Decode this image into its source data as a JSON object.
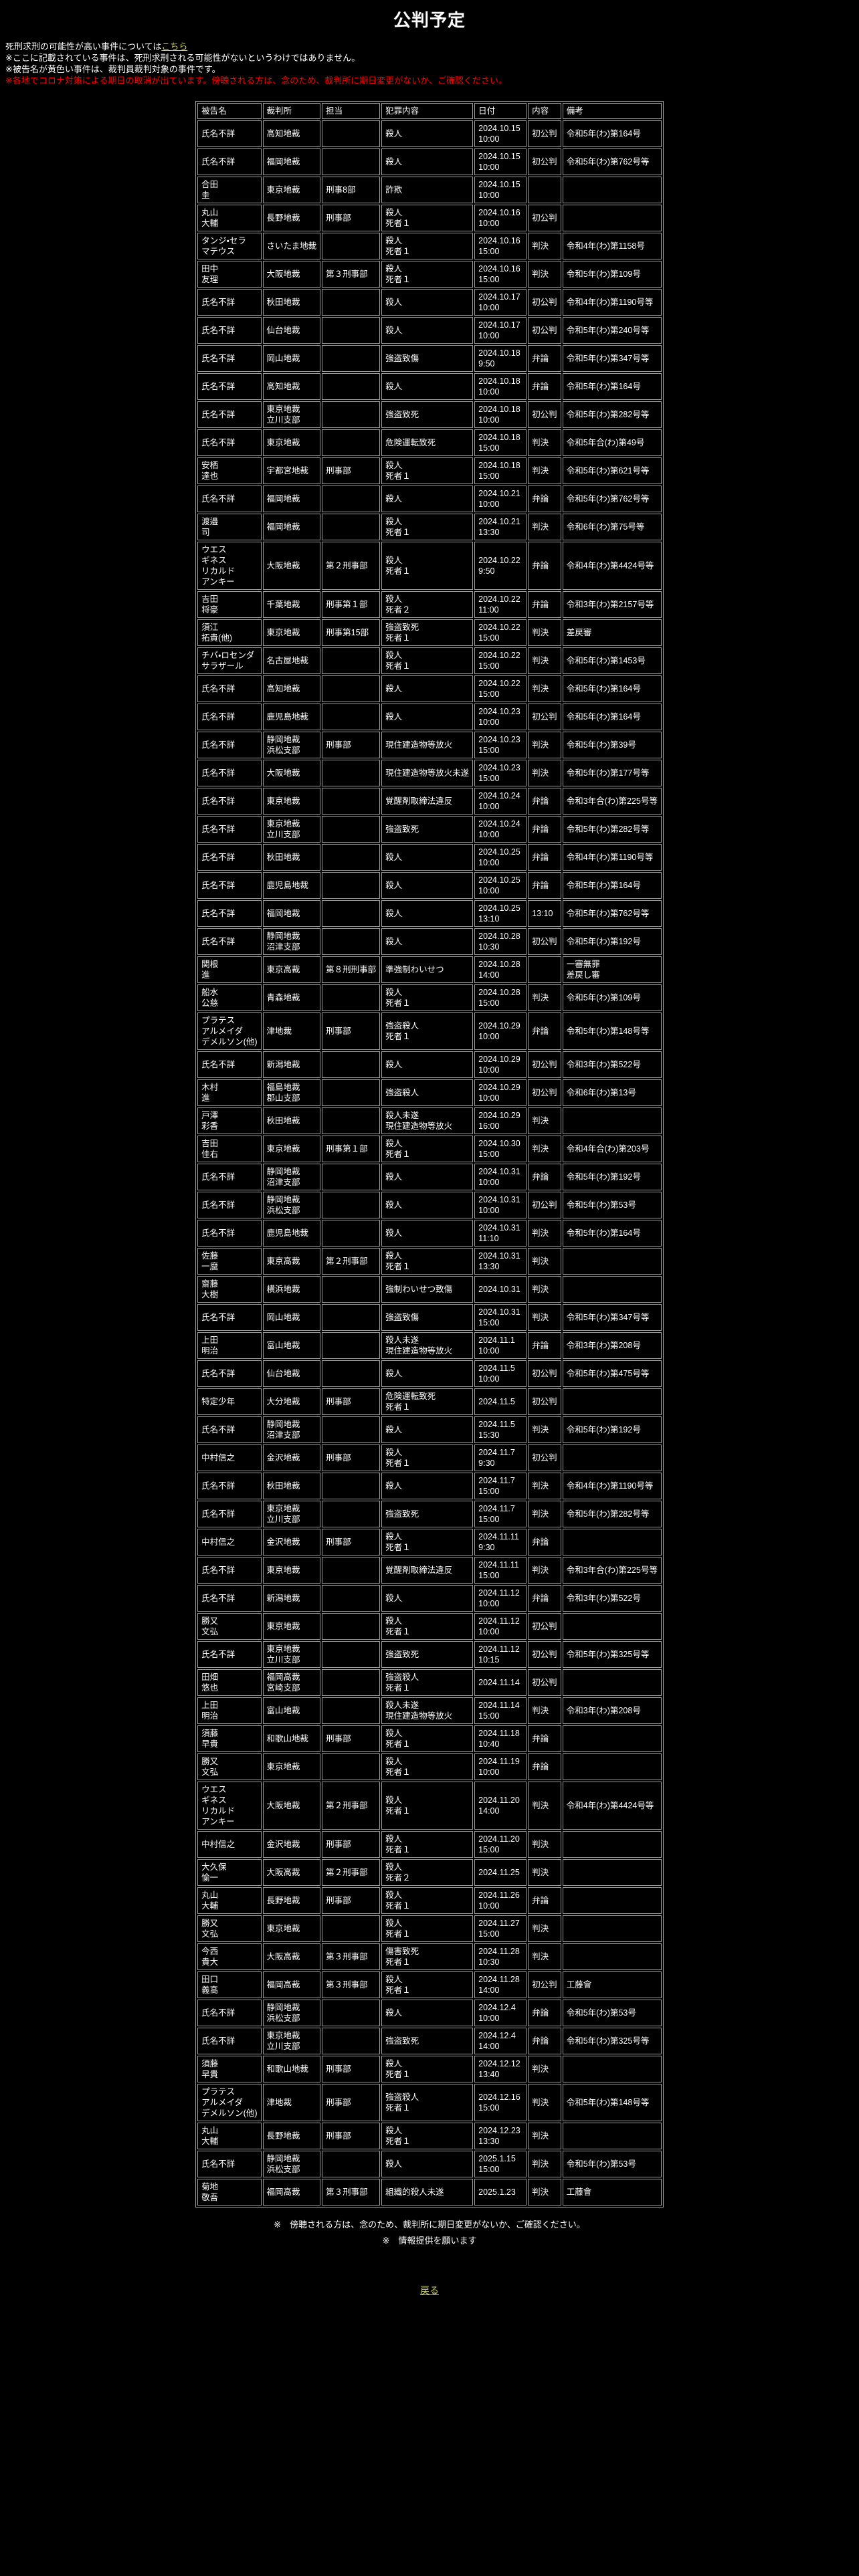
{
  "page": {
    "title": "公判予定",
    "intro": {
      "line1_prefix": "死刑求刑の可能性が高い事件については",
      "line1_link": "こちら",
      "line2": "※ここに記載されている事件は、死刑求刑される可能性がないというわけではありません。",
      "line3": "※被告名が黄色い事件は、裁判員裁判対象の事件です。",
      "warning": "※各地でコロナ対策による期日の取消が出ています。傍聴される方は、念のため、裁判所に期日変更がないか、ご確認ください。"
    },
    "footer": {
      "note1": "※　傍聴される方は、念のため、裁判所に期日変更がないか、ご確認ください。",
      "note2": "※　情報提供を願います",
      "back_link": "戻る"
    },
    "colors": {
      "background": "#000000",
      "text": "#ffffff",
      "lay_judge_name": "#ffff00",
      "warning": "#ff0000",
      "link": "#cccc66",
      "table_border": "#9c9c9c"
    }
  },
  "table": {
    "headers": [
      "被告名",
      "裁判所",
      "担当",
      "犯罪内容",
      "日付",
      "内容",
      "備考"
    ],
    "rows": [
      {
        "name": "氏名不詳",
        "lay_judge": true,
        "court": "高知地裁",
        "division": "",
        "crime": "殺人",
        "date": "2024.10.15\n10:00",
        "session": "初公判",
        "note": "令和5年(わ)第164号"
      },
      {
        "name": "氏名不詳",
        "lay_judge": true,
        "court": "福岡地裁",
        "division": "",
        "crime": "殺人",
        "date": "2024.10.15\n10:00",
        "session": "初公判",
        "note": "令和5年(わ)第762号等"
      },
      {
        "name": "合田\n圭",
        "lay_judge": false,
        "court": "東京地裁",
        "division": "刑事8部",
        "crime": "詐欺",
        "date": "2024.10.15\n10:00",
        "session": "",
        "note": ""
      },
      {
        "name": "丸山\n大輔",
        "lay_judge": true,
        "court": "長野地裁",
        "division": "刑事部",
        "crime": "殺人\n死者１",
        "date": "2024.10.16\n10:00",
        "session": "初公判",
        "note": ""
      },
      {
        "name": "タンジ・セラ\nマテウス",
        "lay_judge": true,
        "court": "さいたま地裁",
        "division": "",
        "crime": "殺人\n死者１",
        "date": "2024.10.16\n15:00",
        "session": "判決",
        "note": "令和4年(わ)第1158号"
      },
      {
        "name": "田中\n友理",
        "lay_judge": true,
        "court": "大阪地裁",
        "division": "第３刑事部",
        "crime": "殺人\n死者１",
        "date": "2024.10.16\n15:00",
        "session": "判決",
        "note": "令和5年(わ)第109号"
      },
      {
        "name": "氏名不詳",
        "lay_judge": true,
        "court": "秋田地裁",
        "division": "",
        "crime": "殺人",
        "date": "2024.10.17\n10:00",
        "session": "初公判",
        "note": "令和4年(わ)第1190号等"
      },
      {
        "name": "氏名不詳",
        "lay_judge": true,
        "court": "仙台地裁",
        "division": "",
        "crime": "殺人",
        "date": "2024.10.17\n10:00",
        "session": "初公判",
        "note": "令和5年(わ)第240号等"
      },
      {
        "name": "氏名不詳",
        "lay_judge": true,
        "court": "岡山地裁",
        "division": "",
        "crime": "強盗致傷",
        "date": "2024.10.18\n9:50",
        "session": "弁論",
        "note": "令和5年(わ)第347号等"
      },
      {
        "name": "氏名不詳",
        "lay_judge": true,
        "court": "高知地裁",
        "division": "",
        "crime": "殺人",
        "date": "2024.10.18\n10:00",
        "session": "弁論",
        "note": "令和5年(わ)第164号"
      },
      {
        "name": "氏名不詳",
        "lay_judge": true,
        "court": "東京地裁\n立川支部",
        "division": "",
        "crime": "強盗致死",
        "date": "2024.10.18\n10:00",
        "session": "初公判",
        "note": "令和5年(わ)第282号等"
      },
      {
        "name": "氏名不詳",
        "lay_judge": true,
        "court": "東京地裁",
        "division": "",
        "crime": "危険運転致死",
        "date": "2024.10.18\n15:00",
        "session": "判決",
        "note": "令和5年合(わ)第49号"
      },
      {
        "name": "安栖\n達也",
        "lay_judge": true,
        "court": "宇都宮地裁",
        "division": "刑事部",
        "crime": "殺人\n死者１",
        "date": "2024.10.18\n15:00",
        "session": "判決",
        "note": "令和5年(わ)第621号等"
      },
      {
        "name": "氏名不詳",
        "lay_judge": true,
        "court": "福岡地裁",
        "division": "",
        "crime": "殺人",
        "date": "2024.10.21\n10:00",
        "session": "弁論",
        "note": "令和5年(わ)第762号等"
      },
      {
        "name": "渡邉\n司",
        "lay_judge": true,
        "court": "福岡地裁",
        "division": "",
        "crime": "殺人\n死者１",
        "date": "2024.10.21\n13:30",
        "session": "判決",
        "note": "令和6年(わ)第75号等"
      },
      {
        "name": "ウエス\nギネス\nリカルド\nアンキー",
        "lay_judge": true,
        "court": "大阪地裁",
        "division": "第２刑事部",
        "crime": "殺人\n死者１",
        "date": "2024.10.22\n9:50",
        "session": "弁論",
        "note": "令和4年(わ)第4424号等"
      },
      {
        "name": "吉田\n将豪",
        "lay_judge": true,
        "court": "千葉地裁",
        "division": "刑事第１部",
        "crime": "殺人\n死者２",
        "date": "2024.10.22\n11:00",
        "session": "弁論",
        "note": "令和3年(わ)第2157号等"
      },
      {
        "name": "須江\n拓貴(他)",
        "lay_judge": true,
        "court": "東京地裁",
        "division": "刑事第15部",
        "crime": "強盗致死\n死者１",
        "date": "2024.10.22\n15:00",
        "session": "判決",
        "note": "差戻審"
      },
      {
        "name": "チバ・ロセンダ\nサラザール",
        "lay_judge": true,
        "court": "名古屋地裁",
        "division": "",
        "crime": "殺人\n死者１",
        "date": "2024.10.22\n15:00",
        "session": "判決",
        "note": "令和5年(わ)第1453号"
      },
      {
        "name": "氏名不詳",
        "lay_judge": true,
        "court": "高知地裁",
        "division": "",
        "crime": "殺人",
        "date": "2024.10.22\n15:00",
        "session": "判決",
        "note": "令和5年(わ)第164号"
      },
      {
        "name": "氏名不詳",
        "lay_judge": true,
        "court": "鹿児島地裁",
        "division": "",
        "crime": "殺人",
        "date": "2024.10.23\n10:00",
        "session": "初公判",
        "note": "令和5年(わ)第164号"
      },
      {
        "name": "氏名不詳",
        "lay_judge": true,
        "court": "静岡地裁\n浜松支部",
        "division": "刑事部",
        "crime": "現住建造物等放火",
        "date": "2024.10.23\n15:00",
        "session": "判決",
        "note": "令和5年(わ)第39号"
      },
      {
        "name": "氏名不詳",
        "lay_judge": true,
        "court": "大阪地裁",
        "division": "",
        "crime": "現住建造物等放火未遂",
        "date": "2024.10.23\n15:00",
        "session": "判決",
        "note": "令和5年(わ)第177号等"
      },
      {
        "name": "氏名不詳",
        "lay_judge": true,
        "court": "東京地裁",
        "division": "",
        "crime": "覚醒剤取締法違反",
        "date": "2024.10.24\n10:00",
        "session": "弁論",
        "note": "令和3年合(わ)第225号等"
      },
      {
        "name": "氏名不詳",
        "lay_judge": true,
        "court": "東京地裁\n立川支部",
        "division": "",
        "crime": "強盗致死",
        "date": "2024.10.24\n10:00",
        "session": "弁論",
        "note": "令和5年(わ)第282号等"
      },
      {
        "name": "氏名不詳",
        "lay_judge": true,
        "court": "秋田地裁",
        "division": "",
        "crime": "殺人",
        "date": "2024.10.25\n10:00",
        "session": "弁論",
        "note": "令和4年(わ)第1190号等"
      },
      {
        "name": "氏名不詳",
        "lay_judge": true,
        "court": "鹿児島地裁",
        "division": "",
        "crime": "殺人",
        "date": "2024.10.25\n10:00",
        "session": "弁論",
        "note": "令和5年(わ)第164号"
      },
      {
        "name": "氏名不詳",
        "lay_judge": true,
        "court": "福岡地裁",
        "division": "",
        "crime": "殺人",
        "date": "2024.10.25\n13:10",
        "session": "13:10",
        "note": "令和5年(わ)第762号等"
      },
      {
        "name": "氏名不詳",
        "lay_judge": true,
        "court": "静岡地裁\n沼津支部",
        "division": "",
        "crime": "殺人",
        "date": "2024.10.28\n10:30",
        "session": "初公判",
        "note": "令和5年(わ)第192号"
      },
      {
        "name": "関根\n進",
        "lay_judge": false,
        "court": "東京高裁",
        "division": "第８刑刑事部",
        "crime": "準強制わいせつ",
        "date": "2024.10.28\n14:00",
        "session": "",
        "note": "一審無罪\n差戻し審"
      },
      {
        "name": "船水\n公慈",
        "lay_judge": true,
        "court": "青森地裁",
        "division": "",
        "crime": "殺人\n死者１",
        "date": "2024.10.28\n15:00",
        "session": "判決",
        "note": "令和5年(わ)第109号"
      },
      {
        "name": "プラテス\nアルメイダ\nデメルソン(他)",
        "lay_judge": true,
        "court": "津地裁",
        "division": "刑事部",
        "crime": "強盗殺人\n死者１",
        "date": "2024.10.29\n10:00",
        "session": "弁論",
        "note": "令和5年(わ)第148号等"
      },
      {
        "name": "氏名不詳",
        "lay_judge": true,
        "court": "新潟地裁",
        "division": "",
        "crime": "殺人",
        "date": "2024.10.29\n10:00",
        "session": "初公判",
        "note": "令和3年(わ)第522号"
      },
      {
        "name": "木村\n進",
        "lay_judge": true,
        "court": "福島地裁\n郡山支部",
        "division": "",
        "crime": "強盗殺人",
        "date": "2024.10.29\n10:00",
        "session": "初公判",
        "note": "令和6年(わ)第13号"
      },
      {
        "name": "戸澤\n彩香",
        "lay_judge": true,
        "court": "秋田地裁",
        "division": "",
        "crime": "殺人未遂\n現住建造物等放火",
        "date": "2024.10.29\n16:00",
        "session": "判決",
        "note": ""
      },
      {
        "name": "吉田\n佳右",
        "lay_judge": true,
        "court": "東京地裁",
        "division": "刑事第１部",
        "crime": "殺人\n死者１",
        "date": "2024.10.30\n15:00",
        "session": "判決",
        "note": "令和4年合(わ)第203号"
      },
      {
        "name": "氏名不詳",
        "lay_judge": true,
        "court": "静岡地裁\n沼津支部",
        "division": "",
        "crime": "殺人",
        "date": "2024.10.31\n10:00",
        "session": "弁論",
        "note": "令和5年(わ)第192号"
      },
      {
        "name": "氏名不詳",
        "lay_judge": true,
        "court": "静岡地裁\n浜松支部",
        "division": "",
        "crime": "殺人",
        "date": "2024.10.31\n10:00",
        "session": "初公判",
        "note": "令和5年(わ)第53号"
      },
      {
        "name": "氏名不詳",
        "lay_judge": true,
        "court": "鹿児島地裁",
        "division": "",
        "crime": "殺人",
        "date": "2024.10.31\n11:10",
        "session": "判決",
        "note": "令和5年(わ)第164号"
      },
      {
        "name": "佐藤\n一麿",
        "lay_judge": false,
        "court": "東京高裁",
        "division": "第２刑事部",
        "crime": "殺人\n死者１",
        "date": "2024.10.31\n13:30",
        "session": "判決",
        "note": ""
      },
      {
        "name": "齋藤\n大樹",
        "lay_judge": true,
        "court": "横浜地裁",
        "division": "",
        "crime": "強制わいせつ致傷",
        "date": "2024.10.31",
        "session": "判決",
        "note": ""
      },
      {
        "name": "氏名不詳",
        "lay_judge": true,
        "court": "岡山地裁",
        "division": "",
        "crime": "強盗致傷",
        "date": "2024.10.31\n15:00",
        "session": "判決",
        "note": "令和5年(わ)第347号等"
      },
      {
        "name": "上田\n明治",
        "lay_judge": true,
        "court": "富山地裁",
        "division": "",
        "crime": "殺人未遂\n現住建造物等放火",
        "date": "2024.11.1\n10:00",
        "session": "弁論",
        "note": "令和3年(わ)第208号"
      },
      {
        "name": "氏名不詳",
        "lay_judge": true,
        "court": "仙台地裁",
        "division": "",
        "crime": "殺人",
        "date": "2024.11.5\n10:00",
        "session": "初公判",
        "note": "令和5年(わ)第475号等"
      },
      {
        "name": "特定少年",
        "lay_judge": true,
        "court": "大分地裁",
        "division": "刑事部",
        "crime": "危険運転致死\n死者１",
        "date": "2024.11.5",
        "session": "初公判",
        "note": ""
      },
      {
        "name": "氏名不詳",
        "lay_judge": true,
        "court": "静岡地裁\n沼津支部",
        "division": "",
        "crime": "殺人",
        "date": "2024.11.5\n15:30",
        "session": "判決",
        "note": "令和5年(わ)第192号"
      },
      {
        "name": "中村信之",
        "lay_judge": true,
        "court": "金沢地裁",
        "division": "刑事部",
        "crime": "殺人\n死者１",
        "date": "2024.11.7\n9:30",
        "session": "初公判",
        "note": ""
      },
      {
        "name": "氏名不詳",
        "lay_judge": true,
        "court": "秋田地裁",
        "division": "",
        "crime": "殺人",
        "date": "2024.11.7\n15:00",
        "session": "判決",
        "note": "令和4年(わ)第1190号等"
      },
      {
        "name": "氏名不詳",
        "lay_judge": true,
        "court": "東京地裁\n立川支部",
        "division": "",
        "crime": "強盗致死",
        "date": "2024.11.7\n15:00",
        "session": "判決",
        "note": "令和5年(わ)第282号等"
      },
      {
        "name": "中村信之",
        "lay_judge": true,
        "court": "金沢地裁",
        "division": "刑事部",
        "crime": "殺人\n死者１",
        "date": "2024.11.11\n9:30",
        "session": "弁論",
        "note": ""
      },
      {
        "name": "氏名不詳",
        "lay_judge": true,
        "court": "東京地裁",
        "division": "",
        "crime": "覚醒剤取締法違反",
        "date": "2024.11.11\n15:00",
        "session": "判決",
        "note": "令和3年合(わ)第225号等"
      },
      {
        "name": "氏名不詳",
        "lay_judge": true,
        "court": "新潟地裁",
        "division": "",
        "crime": "殺人",
        "date": "2024.11.12\n10:00",
        "session": "弁論",
        "note": "令和3年(わ)第522号"
      },
      {
        "name": "勝又\n文弘",
        "lay_judge": true,
        "court": "東京地裁",
        "division": "",
        "crime": "殺人\n死者１",
        "date": "2024.11.12\n10:00",
        "session": "初公判",
        "note": ""
      },
      {
        "name": "氏名不詳",
        "lay_judge": true,
        "court": "東京地裁\n立川支部",
        "division": "",
        "crime": "強盗致死",
        "date": "2024.11.12\n10:15",
        "session": "初公判",
        "note": "令和5年(わ)第325号等"
      },
      {
        "name": "田畑\n悠也",
        "lay_judge": false,
        "court": "福岡高裁\n宮崎支部",
        "division": "",
        "crime": "強盗殺人\n死者１",
        "date": "2024.11.14",
        "session": "初公判",
        "note": ""
      },
      {
        "name": "上田\n明治",
        "lay_judge": true,
        "court": "富山地裁",
        "division": "",
        "crime": "殺人未遂\n現住建造物等放火",
        "date": "2024.11.14\n15:00",
        "session": "判決",
        "note": "令和3年(わ)第208号"
      },
      {
        "name": "須藤\n早貴",
        "lay_judge": true,
        "court": "和歌山地裁",
        "division": "刑事部",
        "crime": "殺人\n死者１",
        "date": "2024.11.18\n10:40",
        "session": "弁論",
        "note": ""
      },
      {
        "name": "勝又\n文弘",
        "lay_judge": true,
        "court": "東京地裁",
        "division": "",
        "crime": "殺人\n死者１",
        "date": "2024.11.19\n10:00",
        "session": "弁論",
        "note": ""
      },
      {
        "name": "ウエス\nギネス\nリカルド\nアンキー",
        "lay_judge": true,
        "court": "大阪地裁",
        "division": "第２刑事部",
        "crime": "殺人\n死者１",
        "date": "2024.11.20\n14:00",
        "session": "判決",
        "note": "令和4年(わ)第4424号等"
      },
      {
        "name": "中村信之",
        "lay_judge": true,
        "court": "金沢地裁",
        "division": "刑事部",
        "crime": "殺人\n死者１",
        "date": "2024.11.20\n15:00",
        "session": "判決",
        "note": ""
      },
      {
        "name": "大久保\n愉一",
        "lay_judge": false,
        "court": "大阪高裁",
        "division": "第２刑事部",
        "crime": "殺人\n死者２",
        "date": "2024.11.25",
        "session": "判決",
        "note": ""
      },
      {
        "name": "丸山\n大輔",
        "lay_judge": true,
        "court": "長野地裁",
        "division": "刑事部",
        "crime": "殺人\n死者１",
        "date": "2024.11.26\n10:00",
        "session": "弁論",
        "note": ""
      },
      {
        "name": "勝又\n文弘",
        "lay_judge": true,
        "court": "東京地裁",
        "division": "",
        "crime": "殺人\n死者１",
        "date": "2024.11.27\n15:00",
        "session": "判決",
        "note": ""
      },
      {
        "name": "今西\n貴大",
        "lay_judge": false,
        "court": "大阪高裁",
        "division": "第３刑事部",
        "crime": "傷害致死\n死者１",
        "date": "2024.11.28\n10:30",
        "session": "判決",
        "note": ""
      },
      {
        "name": "田口\n義高",
        "lay_judge": false,
        "court": "福岡高裁",
        "division": "第３刑事部",
        "crime": "殺人\n死者１",
        "date": "2024.11.28\n14:00",
        "session": "初公判",
        "note": "工藤會"
      },
      {
        "name": "氏名不詳",
        "lay_judge": true,
        "court": "静岡地裁\n浜松支部",
        "division": "",
        "crime": "殺人",
        "date": "2024.12.4\n10:00",
        "session": "弁論",
        "note": "令和5年(わ)第53号"
      },
      {
        "name": "氏名不詳",
        "lay_judge": true,
        "court": "東京地裁\n立川支部",
        "division": "",
        "crime": "強盗致死",
        "date": "2024.12.4\n14:00",
        "session": "弁論",
        "note": "令和5年(わ)第325号等"
      },
      {
        "name": "須藤\n早貴",
        "lay_judge": true,
        "court": "和歌山地裁",
        "division": "刑事部",
        "crime": "殺人\n死者１",
        "date": "2024.12.12\n13:40",
        "session": "判決",
        "note": ""
      },
      {
        "name": "プラテス\nアルメイダ\nデメルソン(他)",
        "lay_judge": true,
        "court": "津地裁",
        "division": "刑事部",
        "crime": "強盗殺人\n死者１",
        "date": "2024.12.16\n15:00",
        "session": "判決",
        "note": "令和5年(わ)第148号等"
      },
      {
        "name": "丸山\n大輔",
        "lay_judge": true,
        "court": "長野地裁",
        "division": "刑事部",
        "crime": "殺人\n死者１",
        "date": "2024.12.23\n13:30",
        "session": "判決",
        "note": ""
      },
      {
        "name": "氏名不詳",
        "lay_judge": true,
        "court": "静岡地裁\n浜松支部",
        "division": "",
        "crime": "殺人",
        "date": "2025.1.15\n15:00",
        "session": "判決",
        "note": "令和5年(わ)第53号"
      },
      {
        "name": "菊地\n敬吾",
        "lay_judge": false,
        "court": "福岡高裁",
        "division": "第３刑事部",
        "crime": "組織的殺人未遂",
        "date": "2025.1.23",
        "session": "判決",
        "note": "工藤會"
      }
    ]
  }
}
